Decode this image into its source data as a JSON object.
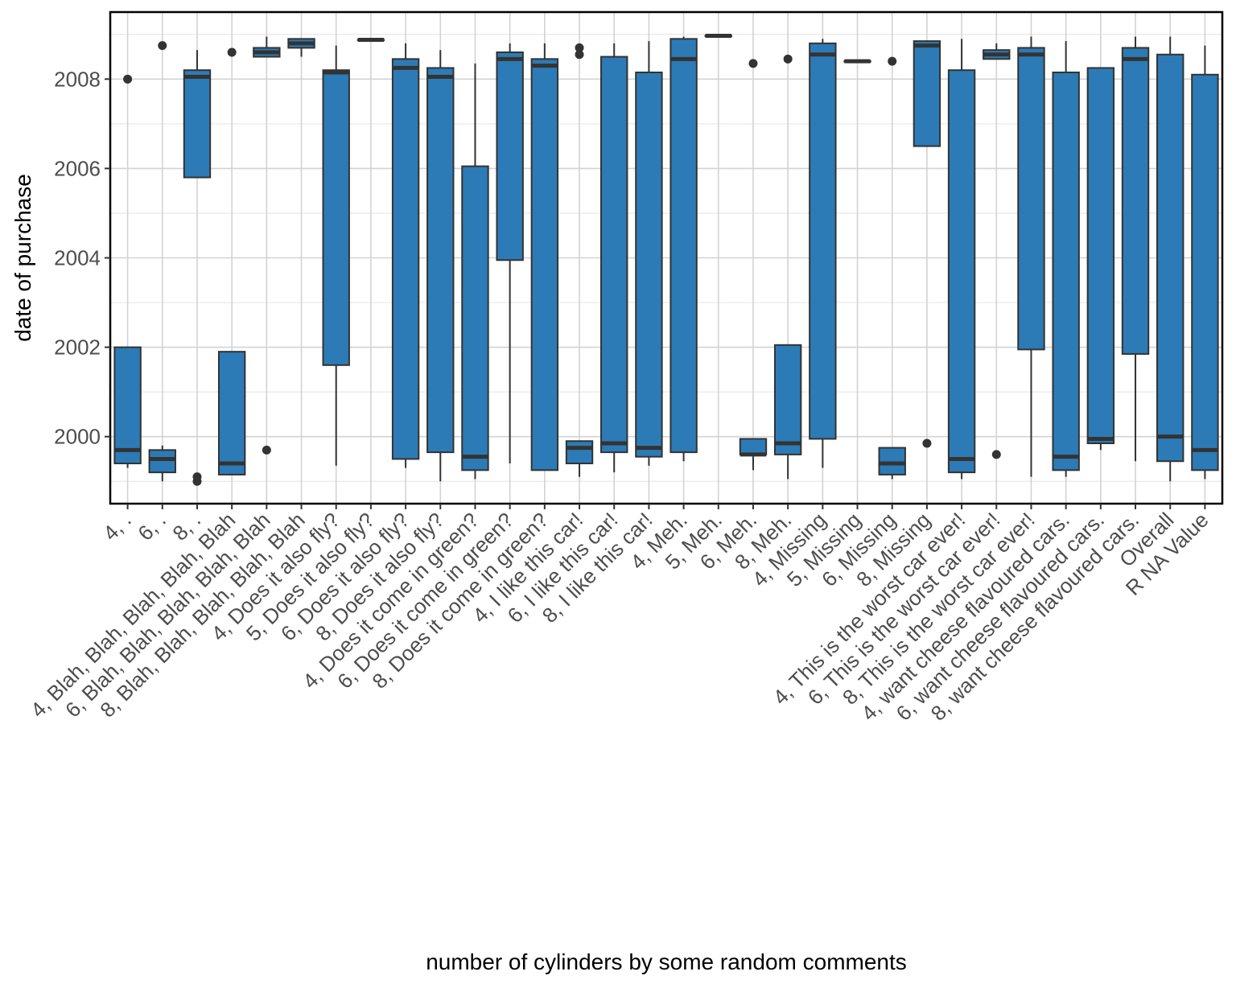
{
  "chart_data": {
    "type": "boxplot",
    "xlabel": "number of cylinders by some random comments",
    "ylabel": "date of purchase",
    "ylim": [
      1998.5,
      2009.5
    ],
    "yticks": [
      2000,
      2002,
      2004,
      2006,
      2008
    ],
    "ytick_labels": [
      "2000",
      "2002",
      "2004",
      "2006",
      "2008"
    ],
    "grid": true,
    "legend": "none",
    "fill_color": "#2C7BB6",
    "line_color": "#333333",
    "categories": [
      "4, .",
      "6, .",
      "8, .",
      "4, Blah, Blah, Blah, Blah, Blah",
      "6, Blah, Blah, Blah, Blah, Blah",
      "8, Blah, Blah, Blah, Blah, Blah",
      "4, Does it also fly?",
      "5, Does it also fly?",
      "6, Does it also fly?",
      "8, Does it also fly?",
      "4, Does it come in green?",
      "6, Does it come in green?",
      "8, Does it come in green?",
      "4, I like this car!",
      "6, I like this car!",
      "8, I like this car!",
      "4, Meh.",
      "5, Meh.",
      "6, Meh.",
      "8, Meh.",
      "4, Missing",
      "5, Missing",
      "6, Missing",
      "8, Missing",
      "4, This is the worst car ever!",
      "6, This is the worst car ever!",
      "8, This is the worst car ever!",
      "4, want cheese flavoured cars.",
      "6, want cheese flavoured cars.",
      "8, want cheese flavoured cars.",
      "Overall",
      "R NA Value"
    ],
    "boxes": [
      {
        "lower": 1999.3,
        "q1": 1999.4,
        "median": 1999.7,
        "q3": 2002.0,
        "upper": 2002.0,
        "outliers": [
          2008.0
        ]
      },
      {
        "lower": 1999.0,
        "q1": 1999.2,
        "median": 1999.5,
        "q3": 1999.7,
        "upper": 1999.8,
        "outliers": [
          2008.75
        ]
      },
      {
        "lower": 2005.8,
        "q1": 2005.8,
        "median": 2008.05,
        "q3": 2008.2,
        "upper": 2008.65,
        "outliers": [
          1999.1,
          1999.0
        ]
      },
      {
        "lower": 1999.15,
        "q1": 1999.15,
        "median": 1999.4,
        "q3": 2001.9,
        "upper": 2001.9,
        "outliers": [
          2008.6
        ]
      },
      {
        "lower": 2008.5,
        "q1": 2008.5,
        "median": 2008.6,
        "q3": 2008.7,
        "upper": 2008.95,
        "outliers": [
          1999.7
        ]
      },
      {
        "lower": 2008.5,
        "q1": 2008.7,
        "median": 2008.8,
        "q3": 2008.9,
        "upper": 2008.9,
        "outliers": []
      },
      {
        "lower": 1999.35,
        "q1": 2001.6,
        "median": 2008.15,
        "q3": 2008.2,
        "upper": 2008.75,
        "outliers": []
      },
      {
        "lower": 2008.88,
        "q1": 2008.88,
        "median": 2008.88,
        "q3": 2008.88,
        "upper": 2008.88,
        "outliers": []
      },
      {
        "lower": 1999.3,
        "q1": 1999.5,
        "median": 2008.25,
        "q3": 2008.45,
        "upper": 2008.8,
        "outliers": []
      },
      {
        "lower": 1999.0,
        "q1": 1999.65,
        "median": 2008.05,
        "q3": 2008.25,
        "upper": 2008.65,
        "outliers": []
      },
      {
        "lower": 1999.05,
        "q1": 1999.25,
        "median": 1999.55,
        "q3": 2006.05,
        "upper": 2008.35,
        "outliers": []
      },
      {
        "lower": 1999.4,
        "q1": 2003.95,
        "median": 2008.45,
        "q3": 2008.6,
        "upper": 2008.8,
        "outliers": []
      },
      {
        "lower": 1999.25,
        "q1": 1999.25,
        "median": 2008.3,
        "q3": 2008.45,
        "upper": 2008.8,
        "outliers": []
      },
      {
        "lower": 1999.1,
        "q1": 1999.4,
        "median": 1999.75,
        "q3": 1999.9,
        "upper": 1999.9,
        "outliers": [
          2008.7,
          2008.55
        ]
      },
      {
        "lower": 1999.2,
        "q1": 1999.65,
        "median": 1999.85,
        "q3": 2008.5,
        "upper": 2008.8,
        "outliers": []
      },
      {
        "lower": 1999.35,
        "q1": 1999.55,
        "median": 1999.75,
        "q3": 2008.15,
        "upper": 2008.85,
        "outliers": []
      },
      {
        "lower": 1999.45,
        "q1": 1999.65,
        "median": 2008.45,
        "q3": 2008.9,
        "upper": 2008.95,
        "outliers": []
      },
      {
        "lower": 2008.97,
        "q1": 2008.97,
        "median": 2008.97,
        "q3": 2008.97,
        "upper": 2008.97,
        "outliers": []
      },
      {
        "lower": 1999.25,
        "q1": 1999.6,
        "median": 1999.6,
        "q3": 1999.95,
        "upper": 1999.95,
        "outliers": [
          2008.35
        ]
      },
      {
        "lower": 1999.05,
        "q1": 1999.6,
        "median": 1999.85,
        "q3": 2002.05,
        "upper": 2002.05,
        "outliers": [
          2008.45
        ]
      },
      {
        "lower": 1999.3,
        "q1": 1999.95,
        "median": 2008.55,
        "q3": 2008.8,
        "upper": 2008.9,
        "outliers": []
      },
      {
        "lower": 2008.4,
        "q1": 2008.4,
        "median": 2008.4,
        "q3": 2008.4,
        "upper": 2008.4,
        "outliers": []
      },
      {
        "lower": 1999.05,
        "q1": 1999.15,
        "median": 1999.4,
        "q3": 1999.75,
        "upper": 1999.75,
        "outliers": [
          2008.4
        ]
      },
      {
        "lower": 2006.5,
        "q1": 2006.5,
        "median": 2008.75,
        "q3": 2008.85,
        "upper": 2008.85,
        "outliers": [
          1999.85
        ]
      },
      {
        "lower": 1999.05,
        "q1": 1999.2,
        "median": 1999.5,
        "q3": 2008.2,
        "upper": 2008.9,
        "outliers": []
      },
      {
        "lower": 2008.45,
        "q1": 2008.45,
        "median": 2008.55,
        "q3": 2008.65,
        "upper": 2008.8,
        "outliers": [
          1999.6
        ]
      },
      {
        "lower": 1999.1,
        "q1": 2001.95,
        "median": 2008.55,
        "q3": 2008.7,
        "upper": 2008.95,
        "outliers": []
      },
      {
        "lower": 1999.1,
        "q1": 1999.25,
        "median": 1999.55,
        "q3": 2008.15,
        "upper": 2008.85,
        "outliers": []
      },
      {
        "lower": 1999.7,
        "q1": 1999.85,
        "median": 1999.95,
        "q3": 2008.25,
        "upper": 2008.25,
        "outliers": []
      },
      {
        "lower": 1999.45,
        "q1": 2001.85,
        "median": 2008.45,
        "q3": 2008.7,
        "upper": 2008.95,
        "outliers": []
      },
      {
        "lower": 1999.0,
        "q1": 1999.45,
        "median": 2000.0,
        "q3": 2008.55,
        "upper": 2008.95,
        "outliers": []
      },
      {
        "lower": 1999.05,
        "q1": 1999.25,
        "median": 1999.7,
        "q3": 2008.1,
        "upper": 2008.75,
        "outliers": []
      }
    ]
  }
}
